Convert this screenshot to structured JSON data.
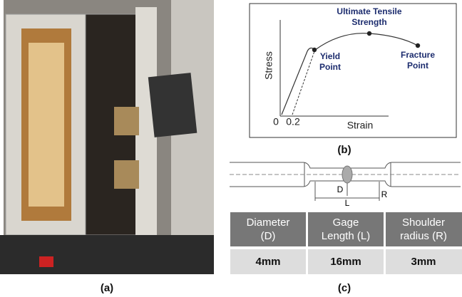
{
  "panel_a": {
    "label": "(a)"
  },
  "panel_b": {
    "label": "(b)",
    "ultimate_tensile_strength": [
      "Ultimate Tensile",
      "Strength"
    ],
    "yield_point": [
      "Yield",
      "Point"
    ],
    "fracture_point": [
      "Fracture",
      "Point"
    ],
    "y_axis_label": "Stress",
    "x_axis_label": "Strain",
    "origin": "0",
    "offset": "0.2"
  },
  "panel_c": {
    "label": "(c)",
    "dimension_labels": {
      "diameter": "D",
      "length": "L",
      "radius": "R"
    },
    "table": {
      "header": [
        [
          "Diameter",
          "(D)"
        ],
        [
          "Gage",
          "Length (L)"
        ],
        [
          "Shoulder",
          "radius (R)"
        ]
      ],
      "rows": [
        [
          "4mm",
          "16mm",
          "3mm"
        ]
      ]
    }
  }
}
